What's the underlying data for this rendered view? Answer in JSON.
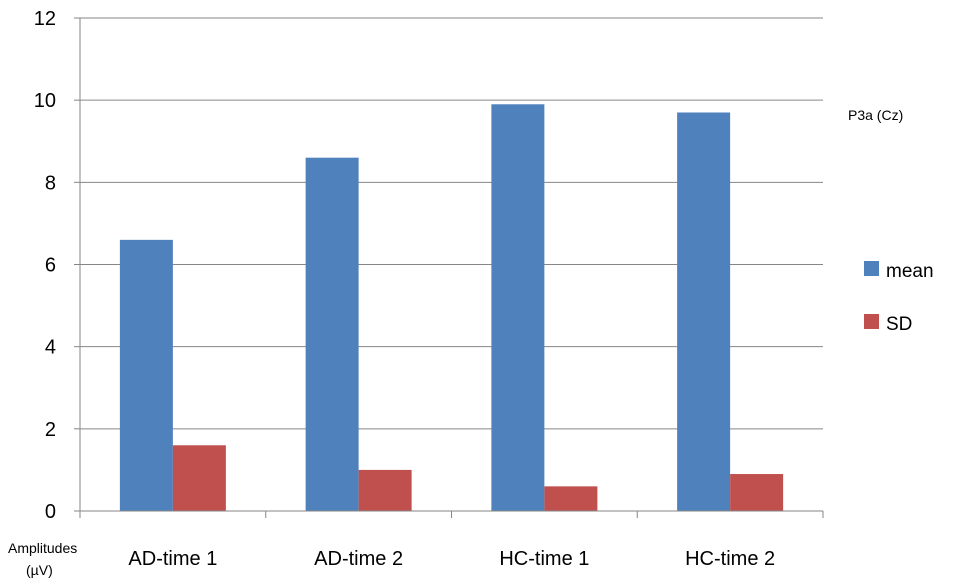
{
  "chart_data": {
    "type": "bar",
    "categories": [
      "AD-time 1",
      "AD-time 2",
      "HC-time 1",
      "HC-time 2"
    ],
    "series": [
      {
        "name": "mean",
        "values": [
          6.6,
          8.6,
          9.9,
          9.7
        ],
        "color": "#4F81BD"
      },
      {
        "name": "SD",
        "values": [
          1.6,
          1.0,
          0.6,
          0.9
        ],
        "color": "#C0504D"
      }
    ],
    "ylim": [
      0,
      12
    ],
    "yticks": [
      0,
      2,
      4,
      6,
      8,
      10,
      12
    ],
    "ylabel_line1": "Amplitudes",
    "ylabel_line2": "(µV)",
    "annotation": "P3a (Cz)",
    "grid": true,
    "legend_position": "right"
  }
}
